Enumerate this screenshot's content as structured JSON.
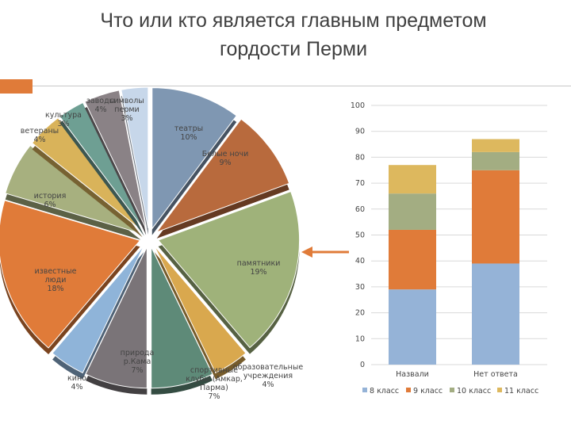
{
  "title_line1": "Что или кто является главным предметом",
  "title_line2": "гордости Перми",
  "colors": {
    "accent": "#e07b39"
  },
  "chart_data": [
    {
      "type": "pie",
      "slices": [
        {
          "label": [
            "театры",
            "10%"
          ],
          "value": 10,
          "color": "#7f97b2"
        },
        {
          "label": [
            "Белые ночи",
            "9%"
          ],
          "value": 9,
          "color": "#b86a3d"
        },
        {
          "label": [
            "памятники",
            "19%"
          ],
          "value": 19,
          "color": "#9fb27a"
        },
        {
          "label": [
            "образовательные",
            "учреждения",
            "4%"
          ],
          "value": 4,
          "color": "#d9a84e"
        },
        {
          "label": [
            "спортивные",
            "клубы (Амкар,",
            "Парма)",
            "7%"
          ],
          "value": 7,
          "color": "#5e8a78"
        },
        {
          "label": [
            "природа",
            "р.Кама",
            "7%"
          ],
          "value": 7,
          "color": "#7a7478"
        },
        {
          "label": [
            "кино",
            "4%"
          ],
          "value": 4,
          "color": "#8fb4d9"
        },
        {
          "label": [
            "известные",
            "люди",
            "18%"
          ],
          "value": 18,
          "color": "#e07b39"
        },
        {
          "label": [
            "история",
            "6%"
          ],
          "value": 6,
          "color": "#a7b07f"
        },
        {
          "label": [
            "ветераны",
            "4%"
          ],
          "value": 4,
          "color": "#d9b35a"
        },
        {
          "label": [
            "культура",
            "3%"
          ],
          "value": 3,
          "color": "#6e9f93"
        },
        {
          "label": [
            "заводы",
            "4%"
          ],
          "value": 4,
          "color": "#8a8286"
        },
        {
          "label": [
            "символы",
            "перми",
            "3%"
          ],
          "value": 3,
          "color": "#c7d7ea"
        }
      ]
    },
    {
      "type": "bar",
      "stacked": true,
      "categories": [
        "Назвали",
        "Нет ответа"
      ],
      "series": [
        {
          "name": "8 класс",
          "values": [
            29,
            39
          ],
          "color": "#95b3d7"
        },
        {
          "name": "9 класс",
          "values": [
            23,
            36
          ],
          "color": "#e07b39"
        },
        {
          "name": "10 класс",
          "values": [
            14,
            7
          ],
          "color": "#a3ad82"
        },
        {
          "name": "11 класс",
          "values": [
            11,
            5
          ],
          "color": "#ddb85e"
        }
      ],
      "ylim": [
        0,
        100
      ],
      "yticks": [
        0,
        10,
        20,
        30,
        40,
        50,
        60,
        70,
        80,
        90,
        100
      ],
      "grid": true,
      "legend": "bottom"
    }
  ]
}
